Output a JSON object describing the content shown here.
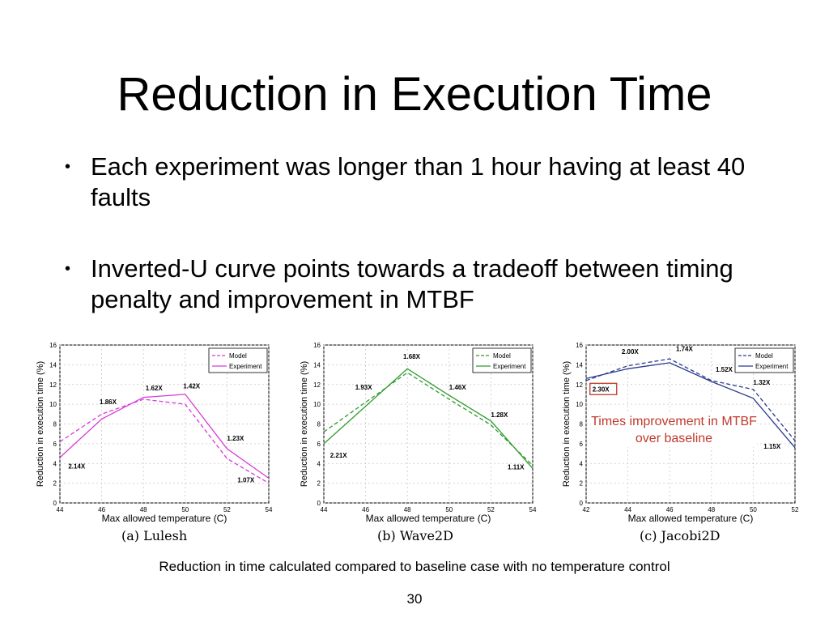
{
  "slide": {
    "title": "Reduction in Execution Time",
    "bullets": [
      "Each experiment was longer than 1 hour having at least 40 faults",
      "Inverted-U curve points towards a tradeoff between timing penalty and improvement in MTBF"
    ],
    "annotation": "Times improvement in MTBF over baseline",
    "footnote": "Reduction in time calculated compared to baseline case with no temperature control",
    "page_number": "30"
  },
  "chart_data": [
    {
      "type": "line",
      "caption": "(a)  Lulesh",
      "xlabel": "Max allowed temperature (C)",
      "ylabel": "Reduction in execution time (%)",
      "xlim": [
        44,
        54
      ],
      "ylim": [
        0,
        16
      ],
      "xticks": [
        44,
        46,
        48,
        50,
        52,
        54
      ],
      "yticks": [
        0,
        2,
        4,
        6,
        8,
        10,
        12,
        14,
        16
      ],
      "grid": true,
      "legend": "top-right",
      "color": "#d63bd6",
      "series": [
        {
          "name": "Model",
          "style": "dashed",
          "x": [
            44,
            46,
            48,
            50,
            52,
            54
          ],
          "y": [
            6.2,
            9.0,
            10.5,
            10.0,
            4.5,
            2.0
          ]
        },
        {
          "name": "Experiment",
          "style": "solid",
          "x": [
            44,
            46,
            48,
            50,
            52,
            54
          ],
          "y": [
            4.6,
            8.5,
            10.7,
            11.0,
            5.5,
            2.5
          ]
        }
      ],
      "point_labels": [
        {
          "text": "2.14X",
          "x": 44.4,
          "y": 3.5
        },
        {
          "text": "1.86X",
          "x": 45.9,
          "y": 10.0
        },
        {
          "text": "1.62X",
          "x": 48.1,
          "y": 11.4
        },
        {
          "text": "1.42X",
          "x": 49.9,
          "y": 11.6
        },
        {
          "text": "1.23X",
          "x": 52.0,
          "y": 6.3
        },
        {
          "text": "1.07X",
          "x": 52.5,
          "y": 2.1
        }
      ]
    },
    {
      "type": "line",
      "caption": "(b)  Wave2D",
      "xlabel": "Max allowed temperature (C)",
      "ylabel": "Reduction in execution time (%)",
      "xlim": [
        44,
        54
      ],
      "ylim": [
        0,
        16
      ],
      "xticks": [
        44,
        46,
        48,
        50,
        52,
        54
      ],
      "yticks": [
        0,
        2,
        4,
        6,
        8,
        10,
        12,
        14,
        16
      ],
      "grid": true,
      "legend": "top-right",
      "color": "#2e9b2e",
      "series": [
        {
          "name": "Model",
          "style": "dashed",
          "x": [
            44,
            48,
            50,
            52,
            54
          ],
          "y": [
            7.2,
            13.2,
            10.5,
            7.9,
            3.8
          ]
        },
        {
          "name": "Experiment",
          "style": "solid",
          "x": [
            44,
            48,
            50,
            52,
            54
          ],
          "y": [
            6.0,
            13.6,
            10.9,
            8.3,
            3.5
          ]
        }
      ],
      "point_labels": [
        {
          "text": "2.21X",
          "x": 44.3,
          "y": 4.6
        },
        {
          "text": "1.93X",
          "x": 45.5,
          "y": 11.5
        },
        {
          "text": "1.68X",
          "x": 47.8,
          "y": 14.6
        },
        {
          "text": "1.46X",
          "x": 50.0,
          "y": 11.5
        },
        {
          "text": "1.28X",
          "x": 52.0,
          "y": 8.7
        },
        {
          "text": "1.11X",
          "x": 52.8,
          "y": 3.4
        }
      ]
    },
    {
      "type": "line",
      "caption": "(c)  Jacobi2D",
      "xlabel": "Max allowed temperature (C)",
      "ylabel": "Reduction in execution time (%)",
      "xlim": [
        42,
        52
      ],
      "ylim": [
        0,
        16
      ],
      "xticks": [
        42,
        44,
        46,
        48,
        50,
        52
      ],
      "yticks": [
        0,
        2,
        4,
        6,
        8,
        10,
        12,
        14,
        16
      ],
      "grid": true,
      "legend": "top-right",
      "color": "#2a3a8c",
      "series": [
        {
          "name": "Model",
          "style": "dashed",
          "x": [
            42,
            44,
            46,
            48,
            50,
            52
          ],
          "y": [
            12.4,
            13.9,
            14.6,
            12.4,
            11.5,
            6.3
          ]
        },
        {
          "name": "Experiment",
          "style": "solid",
          "x": [
            42,
            44,
            46,
            48,
            50,
            52
          ],
          "y": [
            12.6,
            13.6,
            14.2,
            12.3,
            10.6,
            5.6
          ]
        }
      ],
      "point_labels": [
        {
          "text": "2.30X",
          "x": 42.3,
          "y": 11.3,
          "boxed": true
        },
        {
          "text": "2.00X",
          "x": 43.7,
          "y": 15.1
        },
        {
          "text": "1.74X",
          "x": 46.3,
          "y": 15.4
        },
        {
          "text": "1.52X",
          "x": 48.2,
          "y": 13.3
        },
        {
          "text": "1.32X",
          "x": 50.0,
          "y": 12.0
        },
        {
          "text": "1.15X",
          "x": 50.5,
          "y": 5.5
        }
      ]
    }
  ]
}
